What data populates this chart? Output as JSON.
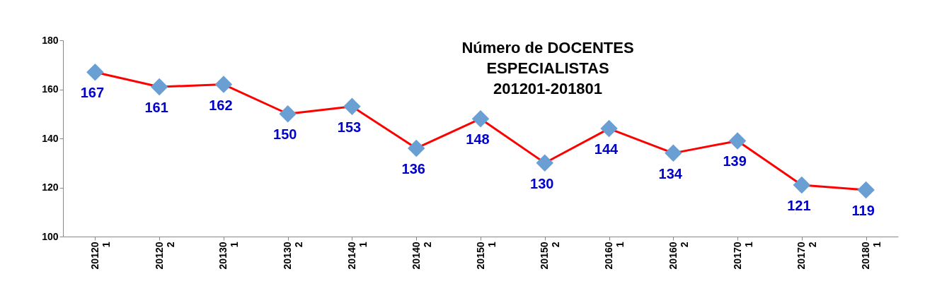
{
  "chart_data": {
    "type": "line",
    "title": [
      "Número de DOCENTES",
      "ESPECIALISTAS",
      "201201-201801"
    ],
    "categories": [
      "201201",
      "201202",
      "201301",
      "201302",
      "201401",
      "201402",
      "201501",
      "201502",
      "201601",
      "201602",
      "201701",
      "201702",
      "201801"
    ],
    "series": [
      {
        "color": "#ff0000",
        "values": [
          167,
          161,
          162,
          150,
          153,
          136,
          148,
          130,
          144,
          134,
          139,
          121,
          119
        ]
      }
    ],
    "marker": "diamond",
    "data_labels": true,
    "ylim": [
      100,
      180
    ],
    "yticks": [
      100,
      120,
      140,
      160,
      180
    ],
    "grid": false,
    "legend": false
  }
}
